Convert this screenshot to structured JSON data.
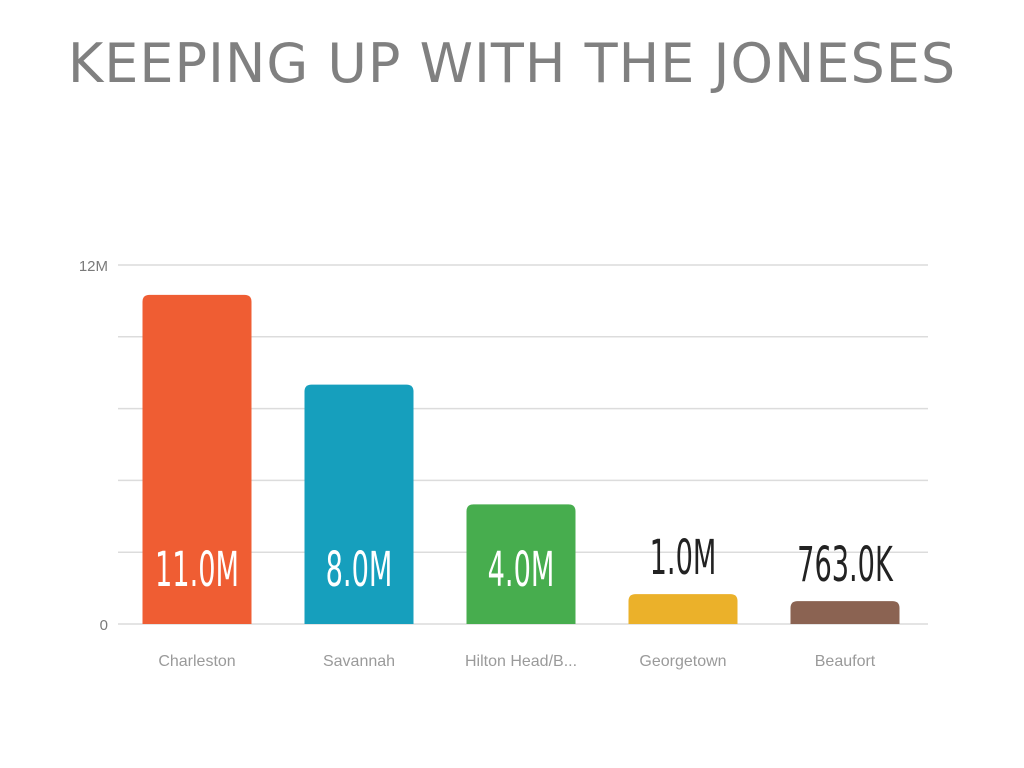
{
  "page": {
    "title": "KEEPING UP WITH THE JONESES"
  },
  "chart_data": {
    "type": "bar",
    "title": "KEEPING UP WITH THE JONESES",
    "categories": [
      "Charleston",
      "Savannah",
      "Hilton Head/B...",
      "Georgetown",
      "Beaufort"
    ],
    "values": [
      11000000,
      8000000,
      4000000,
      1000000,
      763000
    ],
    "value_labels": [
      "11.0M",
      "8.0M",
      "4.0M",
      "1.0M",
      "763.0K"
    ],
    "colors": [
      "#ef5d33",
      "#169fbd",
      "#47ad4e",
      "#ebb12a",
      "#8b6352"
    ],
    "ylim": [
      0,
      12000000
    ],
    "y_tick_labels": [
      "0",
      "12M"
    ],
    "gridlines": 5,
    "grid": true,
    "xlabel": "",
    "ylabel": ""
  }
}
